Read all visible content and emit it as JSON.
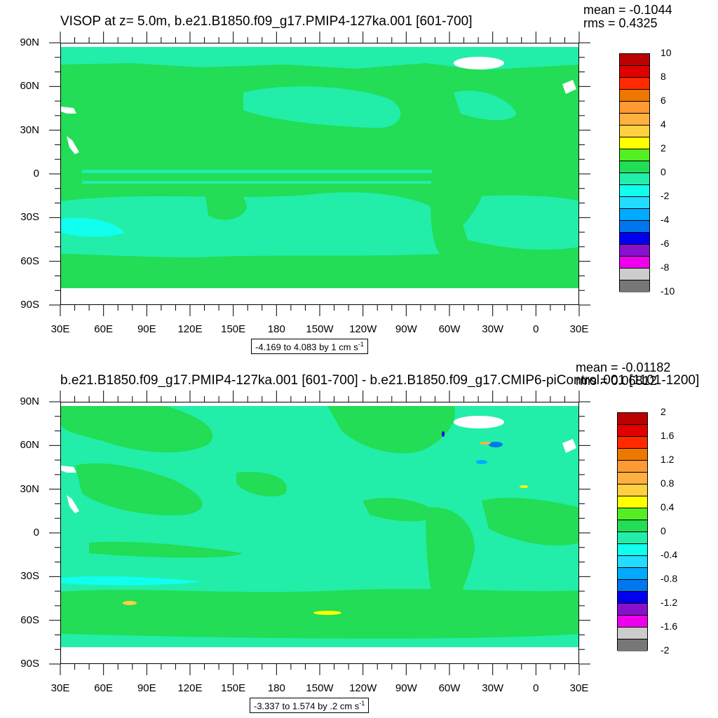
{
  "chart_data": [
    {
      "type": "contour-map",
      "title": "VISOP at z=   5.0m, b.e21.B1850.f09_g17.PMIP4-127ka.001 [601-700]",
      "stats": {
        "mean": "mean = -0.1044",
        "rms": "rms = 0.4325"
      },
      "info_text": "-4.169 to 4.083 by 1 cm s",
      "info_superscript": "-1",
      "lat_ticks": [
        "90N",
        "60N",
        "30N",
        "0",
        "30S",
        "60S",
        "90S"
      ],
      "lon_ticks": [
        "30E",
        "60E",
        "90E",
        "120E",
        "150E",
        "180",
        "150W",
        "120W",
        "90W",
        "60W",
        "30W",
        "0",
        "30E"
      ],
      "colorbar_labels": [
        "10",
        "8",
        "6",
        "4",
        "2",
        "0",
        "-2",
        "-4",
        "-6",
        "-8",
        "-10"
      ],
      "colorbar_range": [
        -10,
        10
      ],
      "colorbar_colors": [
        "#BB0000",
        "#E00000",
        "#FF2A00",
        "#EE7700",
        "#FF9933",
        "#FFB040",
        "#FFD040",
        "#FFFF00",
        "#55EE22",
        "#22DD55",
        "#22EEAA",
        "#11FFEE",
        "#22DDFF",
        "#00AAFF",
        "#0077EE",
        "#0000EE",
        "#8811CC",
        "#EE00EE",
        "#CCCCCC",
        "#777777"
      ]
    },
    {
      "type": "contour-map",
      "title": "b.e21.B1850.f09_g17.PMIP4-127ka.001 [601-700] - b.e21.B1850.f09_g17.CMIP6-piControl.001 [1101-1200]",
      "stats": {
        "mean": "mean = -0.01182",
        "rms": "rms = 0.06812"
      },
      "info_text": "-3.337 to 1.574 by .2 cm s",
      "info_superscript": "-1",
      "lat_ticks": [
        "90N",
        "60N",
        "30N",
        "0",
        "30S",
        "60S",
        "90S"
      ],
      "lon_ticks": [
        "30E",
        "60E",
        "90E",
        "120E",
        "150E",
        "180",
        "150W",
        "120W",
        "90W",
        "60W",
        "30W",
        "0",
        "30E"
      ],
      "colorbar_labels": [
        "2",
        "1.6",
        "1.2",
        "0.8",
        "0.4",
        "0",
        "-0.4",
        "-0.8",
        "-1.2",
        "-1.6",
        "-2"
      ],
      "colorbar_range": [
        -2,
        2
      ],
      "colorbar_colors": [
        "#BB0000",
        "#E00000",
        "#FF2A00",
        "#EE7700",
        "#FF9933",
        "#FFB040",
        "#FFD040",
        "#FFFF00",
        "#55EE22",
        "#22DD55",
        "#22EEAA",
        "#11FFEE",
        "#22DDFF",
        "#00AAFF",
        "#0077EE",
        "#0000EE",
        "#8811CC",
        "#EE00EE",
        "#CCCCCC",
        "#777777"
      ]
    }
  ]
}
